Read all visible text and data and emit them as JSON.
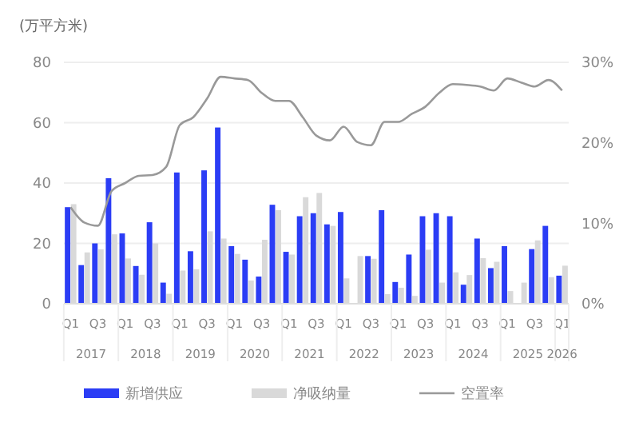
{
  "chart_data": {
    "type": "bar",
    "ylabel": "(万平方米)",
    "categories": [
      "Q1",
      null,
      "Q3",
      null,
      "Q1",
      null,
      "Q3",
      null,
      "Q1",
      null,
      "Q3",
      null,
      "Q1",
      null,
      "Q3",
      null,
      "Q1",
      null,
      "Q3",
      null,
      "Q1",
      null,
      "Q3",
      null,
      "Q1",
      null,
      "Q3",
      null,
      "Q1",
      null,
      "Q3",
      null,
      "Q1",
      null,
      "Q3",
      null,
      "Q1"
    ],
    "annotations": [
      "2017",
      "2018",
      "2019",
      "2020",
      "2021",
      "2022",
      "2023",
      "2024",
      "2025",
      "2026"
    ],
    "series": [
      {
        "name": "新增供应",
        "color": "#2b3df5",
        "values": [
          32,
          12.8,
          20,
          41.6,
          23.3,
          12.5,
          27,
          7,
          43.5,
          17.4,
          44.2,
          58.4,
          19.1,
          14.6,
          9,
          32.8,
          17.2,
          29,
          30,
          26.3,
          30.4,
          0,
          15.8,
          31,
          7.2,
          16.3,
          29,
          30,
          29,
          6.3,
          21.6,
          11.8,
          19.1,
          0,
          18.1,
          25.8,
          9.3
        ]
      },
      {
        "name": "净吸纳量",
        "color": "#d9d9d9",
        "values": [
          33,
          17,
          18,
          23,
          15,
          9.6,
          20,
          3.3,
          11,
          11.4,
          24,
          21.6,
          16.5,
          7.7,
          21.2,
          31,
          16.3,
          35.3,
          36.7,
          25.8,
          8.4,
          15.8,
          14.9,
          3.2,
          5.3,
          2.6,
          17.9,
          7,
          10.4,
          9.5,
          15.1,
          13.9,
          4.2,
          7,
          21,
          8.8,
          12.6
        ]
      },
      {
        "name": "空置率",
        "type": "line",
        "axis": "y2",
        "color": "#999999",
        "values": [
          12,
          10.1,
          9.7,
          14,
          15,
          15.9,
          16,
          17,
          22.2,
          23.2,
          25.5,
          28.2,
          28,
          27.8,
          26.2,
          25.2,
          25.2,
          23.2,
          20.9,
          20.3,
          22,
          20.1,
          19.7,
          22.6,
          22.6,
          23.6,
          24.5,
          26.2,
          27.3,
          27.2,
          27,
          26.5,
          28,
          27.5,
          27,
          27.8,
          26.5
        ]
      }
    ],
    "ylim": [
      0,
      80
    ],
    "yticks": [
      0,
      20,
      40,
      60,
      80
    ],
    "y2lim": [
      0,
      30
    ],
    "y2ticks": [
      {
        "value": 0,
        "label": "0%"
      },
      {
        "value": 10,
        "label": "10%"
      },
      {
        "value": 20,
        "label": "20%"
      },
      {
        "value": 30,
        "label": "30%"
      }
    ],
    "grid": "y",
    "legend": "bottom",
    "marker": "none",
    "line_style": "solid"
  }
}
